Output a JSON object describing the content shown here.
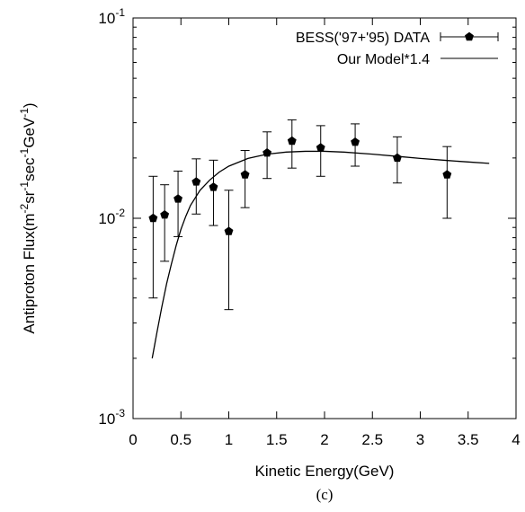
{
  "chart_data": {
    "type": "scatter",
    "xlabel": "Kinetic Energy(GeV)",
    "ylabel": {
      "prefix": "Antiproton Flux(m",
      "e1": "-2",
      "mid1": "sr",
      "e2": "-1",
      "mid2": "sec",
      "e3": "-1",
      "mid3": "GeV",
      "e4": "-1",
      "suffix": ")"
    },
    "caption": "(c)",
    "x_range": [
      0,
      4
    ],
    "y_range": [
      0.001,
      0.1
    ],
    "y_scale": "log",
    "x_ticks": [
      "0",
      "0.5",
      "1",
      "1.5",
      "2",
      "2.5",
      "3",
      "3.5",
      "4"
    ],
    "y_ticks": [
      {
        "value": 0.001,
        "base": "10",
        "exp": "-3"
      },
      {
        "value": 0.01,
        "base": "10",
        "exp": "-2"
      },
      {
        "value": 0.1,
        "base": "10",
        "exp": "-1"
      }
    ],
    "grid": false,
    "legend_position": "top-right",
    "series": [
      {
        "name": "BESS('97+'95) DATA",
        "style": "points-with-errorbars",
        "marker": "pentagon",
        "points": [
          {
            "x": 0.21,
            "y": 0.01,
            "ylo": 0.004,
            "yhi": 0.0162
          },
          {
            "x": 0.33,
            "y": 0.0104,
            "ylo": 0.0061,
            "yhi": 0.0147
          },
          {
            "x": 0.47,
            "y": 0.0125,
            "ylo": 0.0081,
            "yhi": 0.0172
          },
          {
            "x": 0.66,
            "y": 0.0152,
            "ylo": 0.0105,
            "yhi": 0.0198
          },
          {
            "x": 0.84,
            "y": 0.0143,
            "ylo": 0.0092,
            "yhi": 0.0195
          },
          {
            "x": 1.0,
            "y": 0.0086,
            "ylo": 0.0035,
            "yhi": 0.0138
          },
          {
            "x": 1.17,
            "y": 0.0165,
            "ylo": 0.0113,
            "yhi": 0.0218
          },
          {
            "x": 1.4,
            "y": 0.0212,
            "ylo": 0.0158,
            "yhi": 0.027
          },
          {
            "x": 1.66,
            "y": 0.0243,
            "ylo": 0.0178,
            "yhi": 0.031
          },
          {
            "x": 1.96,
            "y": 0.0225,
            "ylo": 0.0162,
            "yhi": 0.029
          },
          {
            "x": 2.32,
            "y": 0.024,
            "ylo": 0.0182,
            "yhi": 0.0296
          },
          {
            "x": 2.76,
            "y": 0.02,
            "ylo": 0.015,
            "yhi": 0.0255
          },
          {
            "x": 3.28,
            "y": 0.0165,
            "ylo": 0.01,
            "yhi": 0.0228
          }
        ]
      },
      {
        "name": "Our Model*1.4",
        "style": "line",
        "points": [
          {
            "x": 0.2,
            "y": 0.002
          },
          {
            "x": 0.25,
            "y": 0.0027
          },
          {
            "x": 0.3,
            "y": 0.0036
          },
          {
            "x": 0.35,
            "y": 0.0047
          },
          {
            "x": 0.4,
            "y": 0.0059
          },
          {
            "x": 0.45,
            "y": 0.0073
          },
          {
            "x": 0.5,
            "y": 0.0088
          },
          {
            "x": 0.55,
            "y": 0.0102
          },
          {
            "x": 0.6,
            "y": 0.0116
          },
          {
            "x": 0.7,
            "y": 0.0138
          },
          {
            "x": 0.8,
            "y": 0.0155
          },
          {
            "x": 0.9,
            "y": 0.017
          },
          {
            "x": 1.0,
            "y": 0.0182
          },
          {
            "x": 1.2,
            "y": 0.0199
          },
          {
            "x": 1.4,
            "y": 0.0209
          },
          {
            "x": 1.6,
            "y": 0.0214
          },
          {
            "x": 1.8,
            "y": 0.0216
          },
          {
            "x": 2.0,
            "y": 0.0216
          },
          {
            "x": 2.2,
            "y": 0.0214
          },
          {
            "x": 2.5,
            "y": 0.0209
          },
          {
            "x": 2.8,
            "y": 0.0203
          },
          {
            "x": 3.0,
            "y": 0.0199
          },
          {
            "x": 3.3,
            "y": 0.0194
          },
          {
            "x": 3.5,
            "y": 0.0191
          },
          {
            "x": 3.72,
            "y": 0.0188
          }
        ]
      }
    ]
  }
}
